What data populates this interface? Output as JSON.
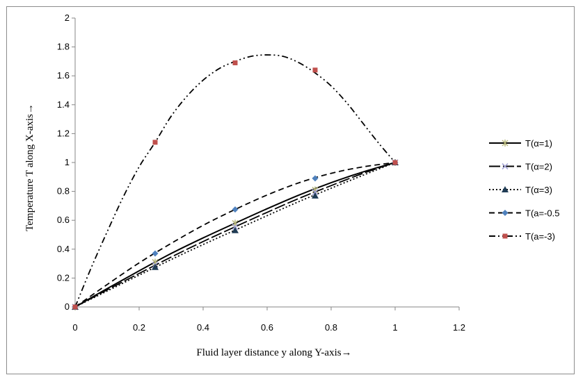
{
  "chart_data": {
    "type": "line",
    "title": "",
    "xlabel": "Fluid layer distance y along Y-axis→",
    "ylabel": "Temperature T along  X-axis→",
    "xlim": [
      0,
      1.2
    ],
    "ylim": [
      0,
      2
    ],
    "x_ticks": [
      "0",
      "0.2",
      "0.4",
      "0.6",
      "0.8",
      "1",
      "1.2"
    ],
    "y_ticks": [
      "0",
      "0.2",
      "0.4",
      "0.6",
      "0.8",
      "1",
      "1.2",
      "1.4",
      "1.6",
      "1.8",
      "2"
    ],
    "grid": false,
    "legend_position": "right",
    "series": [
      {
        "name": "T(α=1)",
        "line_style": "solid",
        "line_color": "#000000",
        "marker": "star",
        "marker_color": "#b5b57a",
        "curve": [
          [
            0,
            0
          ],
          [
            0.1,
            0.127
          ],
          [
            0.2,
            0.25
          ],
          [
            0.3,
            0.37
          ],
          [
            0.4,
            0.478
          ],
          [
            0.5,
            0.58
          ],
          [
            0.6,
            0.68
          ],
          [
            0.7,
            0.775
          ],
          [
            0.8,
            0.86
          ],
          [
            0.9,
            0.935
          ],
          [
            1,
            1
          ]
        ],
        "markers": [
          [
            0,
            0
          ],
          [
            0.25,
            0.31
          ],
          [
            0.5,
            0.58
          ],
          [
            0.75,
            0.81
          ],
          [
            1,
            1
          ]
        ]
      },
      {
        "name": "T(α=2)",
        "line_style": "long-dash",
        "line_color": "#000000",
        "marker": "x",
        "marker_color": "#a8a8d8",
        "curve": [
          [
            0,
            0
          ],
          [
            0.1,
            0.118
          ],
          [
            0.2,
            0.232
          ],
          [
            0.3,
            0.345
          ],
          [
            0.4,
            0.453
          ],
          [
            0.5,
            0.555
          ],
          [
            0.6,
            0.655
          ],
          [
            0.7,
            0.752
          ],
          [
            0.8,
            0.84
          ],
          [
            0.9,
            0.925
          ],
          [
            1,
            1
          ]
        ],
        "markers": [
          [
            0,
            0
          ],
          [
            0.25,
            0.29
          ],
          [
            0.5,
            0.555
          ],
          [
            0.75,
            0.795
          ],
          [
            1,
            1
          ]
        ]
      },
      {
        "name": "T(α=3)",
        "line_style": "dotted",
        "line_color": "#000000",
        "marker": "triangle",
        "marker_color": "#1f3c55",
        "curve": [
          [
            0,
            0
          ],
          [
            0.1,
            0.11
          ],
          [
            0.2,
            0.22
          ],
          [
            0.3,
            0.328
          ],
          [
            0.4,
            0.432
          ],
          [
            0.5,
            0.532
          ],
          [
            0.6,
            0.632
          ],
          [
            0.7,
            0.73
          ],
          [
            0.8,
            0.822
          ],
          [
            0.9,
            0.912
          ],
          [
            1,
            1
          ]
        ],
        "markers": [
          [
            0,
            0
          ],
          [
            0.25,
            0.275
          ],
          [
            0.5,
            0.53
          ],
          [
            0.75,
            0.77
          ],
          [
            1,
            1
          ]
        ]
      },
      {
        "name": "T(a=-0.5",
        "line_style": "dashed",
        "line_color": "#000000",
        "marker": "diamond",
        "marker_color": "#4f81bd",
        "curve": [
          [
            0,
            0
          ],
          [
            0.1,
            0.155
          ],
          [
            0.2,
            0.305
          ],
          [
            0.3,
            0.44
          ],
          [
            0.4,
            0.565
          ],
          [
            0.5,
            0.675
          ],
          [
            0.6,
            0.775
          ],
          [
            0.7,
            0.86
          ],
          [
            0.8,
            0.925
          ],
          [
            0.9,
            0.97
          ],
          [
            1,
            1
          ]
        ],
        "markers": [
          [
            0,
            0
          ],
          [
            0.25,
            0.37
          ],
          [
            0.5,
            0.675
          ],
          [
            0.75,
            0.89
          ],
          [
            1,
            1
          ]
        ]
      },
      {
        "name": "T(a=-3)",
        "line_style": "dash-dot-dot",
        "line_color": "#000000",
        "marker": "square",
        "marker_color": "#c0504d",
        "curve": [
          [
            0,
            0
          ],
          [
            0.05,
            0.27
          ],
          [
            0.1,
            0.52
          ],
          [
            0.15,
            0.76
          ],
          [
            0.2,
            0.97
          ],
          [
            0.25,
            1.14
          ],
          [
            0.3,
            1.32
          ],
          [
            0.35,
            1.46
          ],
          [
            0.4,
            1.57
          ],
          [
            0.45,
            1.65
          ],
          [
            0.5,
            1.7
          ],
          [
            0.55,
            1.735
          ],
          [
            0.6,
            1.745
          ],
          [
            0.65,
            1.735
          ],
          [
            0.7,
            1.69
          ],
          [
            0.75,
            1.62
          ],
          [
            0.8,
            1.53
          ],
          [
            0.85,
            1.41
          ],
          [
            0.9,
            1.27
          ],
          [
            0.95,
            1.13
          ],
          [
            1,
            1
          ]
        ],
        "markers": [
          [
            0,
            0
          ],
          [
            0.25,
            1.14
          ],
          [
            0.5,
            1.69
          ],
          [
            0.75,
            1.64
          ],
          [
            1,
            1
          ]
        ]
      }
    ]
  }
}
